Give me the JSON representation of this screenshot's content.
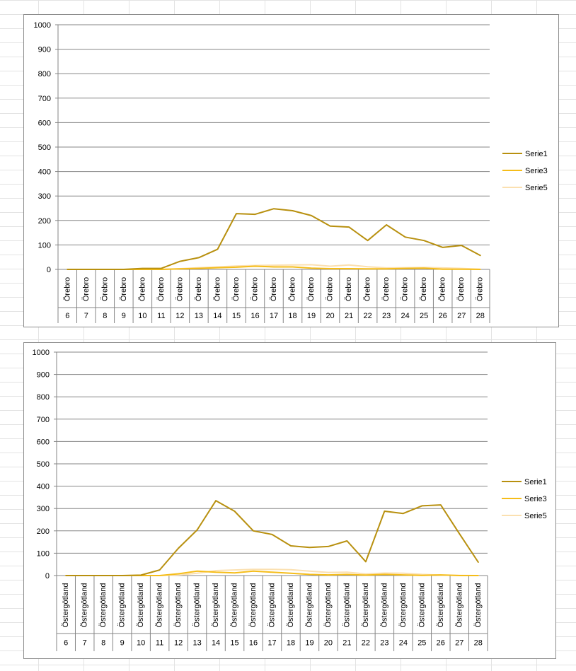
{
  "chart_data": [
    {
      "type": "line",
      "region": "Örebro",
      "categories": [
        "6",
        "7",
        "8",
        "9",
        "10",
        "11",
        "12",
        "13",
        "14",
        "15",
        "16",
        "17",
        "18",
        "19",
        "20",
        "21",
        "22",
        "23",
        "24",
        "25",
        "26",
        "27",
        "28"
      ],
      "y_ticks": [
        "0",
        "100",
        "200",
        "300",
        "400",
        "500",
        "600",
        "700",
        "800",
        "900",
        "1000"
      ],
      "ylim": [
        0,
        1000
      ],
      "grid": true,
      "legend": "right",
      "series": [
        {
          "name": "Serie1",
          "color": "#b8900f",
          "values": [
            0,
            0,
            0,
            0,
            4,
            4,
            33,
            48,
            82,
            228,
            225,
            248,
            240,
            220,
            177,
            173,
            118,
            182,
            132,
            118,
            90,
            98,
            57
          ]
        },
        {
          "name": "Serie3",
          "color": "#f5bd1a",
          "values": [
            0,
            0,
            0,
            0,
            0,
            0,
            2,
            4,
            7,
            9,
            13,
            10,
            10,
            5,
            3,
            3,
            2,
            2,
            4,
            5,
            1,
            1,
            0
          ]
        },
        {
          "name": "Serie5",
          "color": "#fbe0b0",
          "values": [
            0,
            0,
            0,
            0,
            0,
            0,
            3,
            7,
            10,
            14,
            16,
            17,
            18,
            19,
            13,
            18,
            11,
            6,
            7,
            8,
            6,
            4,
            1
          ]
        }
      ]
    },
    {
      "type": "line",
      "region": "Östergötland",
      "categories": [
        "6",
        "7",
        "8",
        "9",
        "10",
        "11",
        "12",
        "13",
        "14",
        "15",
        "16",
        "17",
        "18",
        "19",
        "20",
        "21",
        "22",
        "23",
        "24",
        "25",
        "26",
        "27",
        "28"
      ],
      "y_ticks": [
        "0",
        "100",
        "200",
        "300",
        "400",
        "500",
        "600",
        "700",
        "800",
        "900",
        "1000"
      ],
      "ylim": [
        0,
        1000
      ],
      "grid": true,
      "legend": "right",
      "series": [
        {
          "name": "Serie1",
          "color": "#b8900f",
          "values": [
            0,
            0,
            0,
            0,
            2,
            25,
            122,
            204,
            335,
            288,
            200,
            184,
            133,
            126,
            130,
            155,
            62,
            288,
            278,
            312,
            316,
            187,
            60
          ]
        },
        {
          "name": "Serie3",
          "color": "#f5bd1a",
          "values": [
            0,
            0,
            0,
            0,
            0,
            0,
            8,
            20,
            15,
            12,
            20,
            15,
            10,
            5,
            3,
            5,
            2,
            5,
            3,
            1,
            3,
            0,
            0
          ]
        },
        {
          "name": "Serie5",
          "color": "#fbe0b0",
          "values": [
            0,
            0,
            0,
            0,
            0,
            0,
            3,
            10,
            22,
            25,
            28,
            28,
            26,
            20,
            14,
            15,
            7,
            11,
            10,
            5,
            2,
            1,
            0
          ]
        }
      ]
    }
  ]
}
